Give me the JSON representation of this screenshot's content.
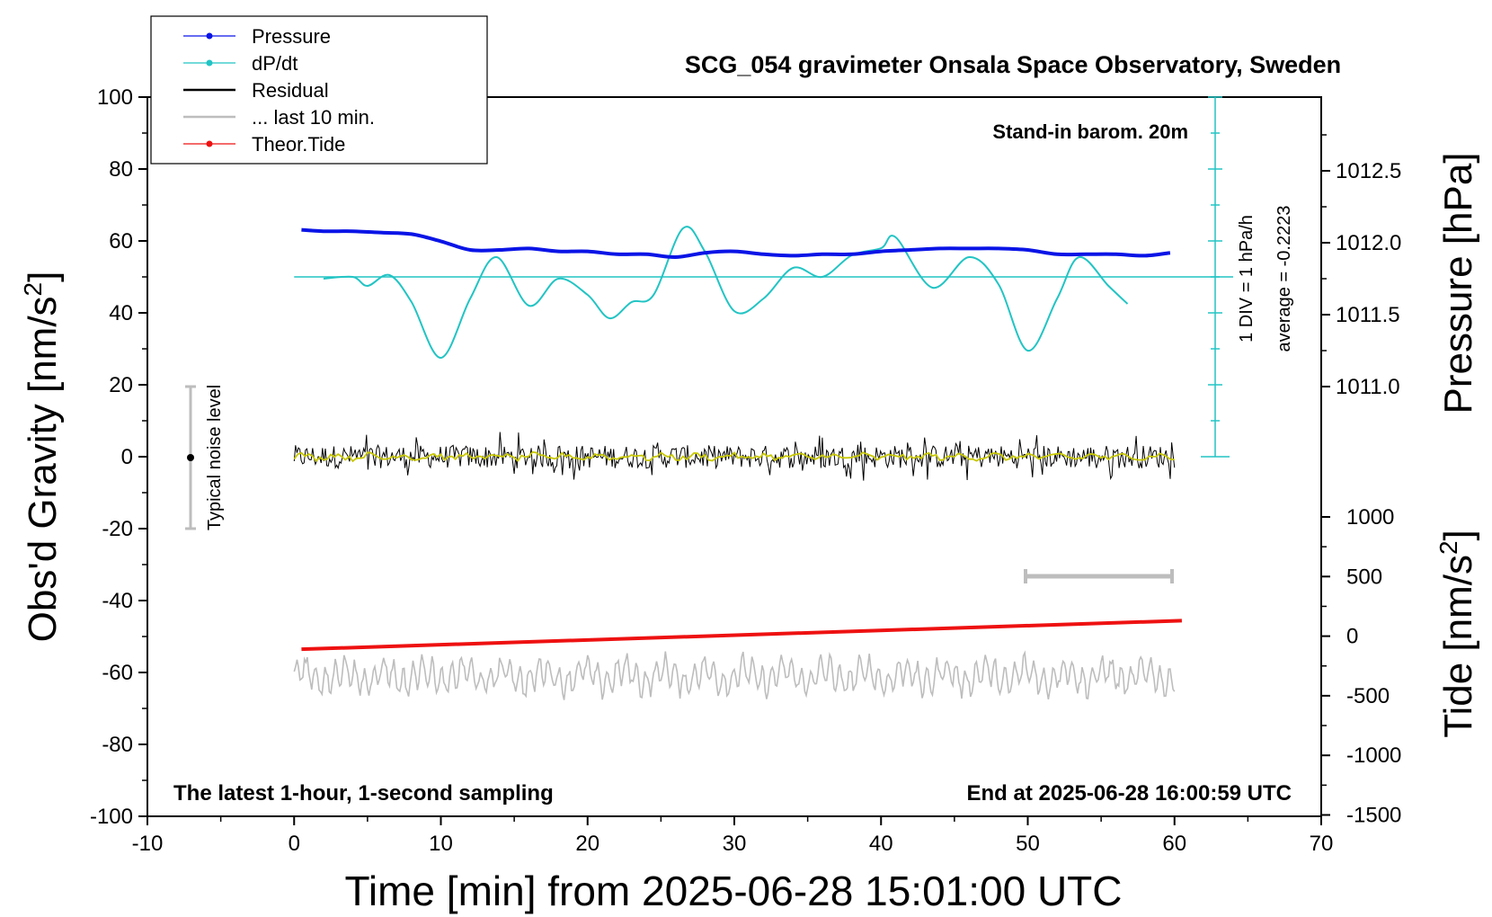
{
  "colors": {
    "pressure": "#0a14e6",
    "dpdt": "#22c4c4",
    "residual": "#000000",
    "last10": "#bdbdbd",
    "tide": "#ee1111",
    "smoothed": "#c8c800"
  },
  "chart_data": {
    "type": "line",
    "title": "SCG_054 gravimeter Onsala Space Observatory, Sweden",
    "xlabel": "Time [min] from 2025-06-28 15:01:00 UTC",
    "xlim": [
      -10,
      70
    ],
    "xticks": [
      "-10",
      "0",
      "10",
      "20",
      "30",
      "40",
      "50",
      "60",
      "70"
    ],
    "y_left": {
      "label": "Obs'd Gravity [nm/s",
      "label_sup": "2",
      "label_end": "]",
      "lim": [
        -100,
        100
      ],
      "ticks": [
        "100",
        "80",
        "60",
        "40",
        "20",
        "0",
        "-20",
        "-40",
        "-60",
        "-80",
        "-100"
      ]
    },
    "y_right_pressure": {
      "label": "Pressure [hPa]",
      "ticks": [
        "1012.5",
        "1012.0",
        "1011.5",
        "1011.0"
      ]
    },
    "y_right_tide": {
      "label": "Tide [nm/s",
      "label_sup": "2",
      "label_end": "]",
      "lim": [
        -1500,
        1000
      ],
      "ticks": [
        "1000",
        "500",
        "0",
        "-500",
        "-1000",
        "-1500"
      ]
    },
    "legend_position": "top-left",
    "legend": [
      {
        "name": "Pressure",
        "style": "line-dot"
      },
      {
        "name": "dP/dt",
        "style": "line-dot"
      },
      {
        "name": "Residual",
        "style": "line"
      },
      {
        "name": "... last 10 min.",
        "style": "line"
      },
      {
        "name": "Theor.Tide",
        "style": "line-dot"
      }
    ],
    "annotations": {
      "stand_in": "Stand-in barom. 20m",
      "div_scale": "1 DIV = 1 hPa/h",
      "average": "average = -0.2223",
      "noise": "Typical noise level",
      "footer_left": "The latest 1-hour, 1-second sampling",
      "footer_right": "End at 2025-06-28 16:00:59 UTC"
    },
    "series": [
      {
        "name": "Pressure",
        "axis": "pressure_hPa",
        "x": [
          0.5,
          2,
          4,
          6,
          8,
          10,
          12,
          14,
          16,
          18,
          20,
          22,
          24,
          26,
          28,
          30,
          32,
          34,
          36,
          38,
          40,
          42,
          44,
          46,
          48,
          50,
          52,
          54,
          56,
          58,
          59.7
        ],
        "y": [
          1012.09,
          1012.08,
          1012.08,
          1012.07,
          1012.06,
          1012.01,
          1011.95,
          1011.95,
          1011.96,
          1011.94,
          1011.94,
          1011.92,
          1011.92,
          1011.9,
          1011.93,
          1011.94,
          1011.92,
          1011.91,
          1011.92,
          1011.92,
          1011.94,
          1011.95,
          1011.96,
          1011.96,
          1011.96,
          1011.95,
          1011.92,
          1011.92,
          1011.92,
          1011.91,
          1011.93
        ]
      },
      {
        "name": "dP/dt",
        "axis": "gravity_scaled",
        "baseline": 50,
        "x": [
          2,
          4,
          5,
          6.5,
          8,
          10,
          12,
          13.8,
          16,
          18,
          20,
          21.5,
          23,
          24.5,
          26.5,
          28,
          30,
          32,
          34,
          36,
          38,
          40,
          41,
          43.5,
          46,
          48,
          50,
          52,
          53.5,
          55.5,
          56.8
        ],
        "y": [
          49.5,
          50,
          47.5,
          50.5,
          43,
          27.5,
          44,
          55.5,
          42,
          49.5,
          45,
          38.5,
          43,
          45,
          63.5,
          57,
          40.5,
          44,
          52.5,
          50,
          56,
          58,
          61,
          47,
          55.5,
          48,
          29.5,
          44,
          55.5,
          47.5,
          42.5
        ]
      },
      {
        "name": "Residual",
        "axis": "gravity",
        "x": [
          0,
          60
        ],
        "y": [
          0,
          0
        ],
        "range": [
          -8,
          9
        ]
      },
      {
        "name": "... last 10 min.",
        "axis": "gravity",
        "x": [
          0,
          60
        ],
        "y": [
          -61,
          -61
        ],
        "range": [
          -72,
          -54
        ]
      },
      {
        "name": "Theor.Tide",
        "axis": "tide",
        "x": [
          0.5,
          60.5
        ],
        "y": [
          -110,
          130
        ]
      }
    ]
  }
}
